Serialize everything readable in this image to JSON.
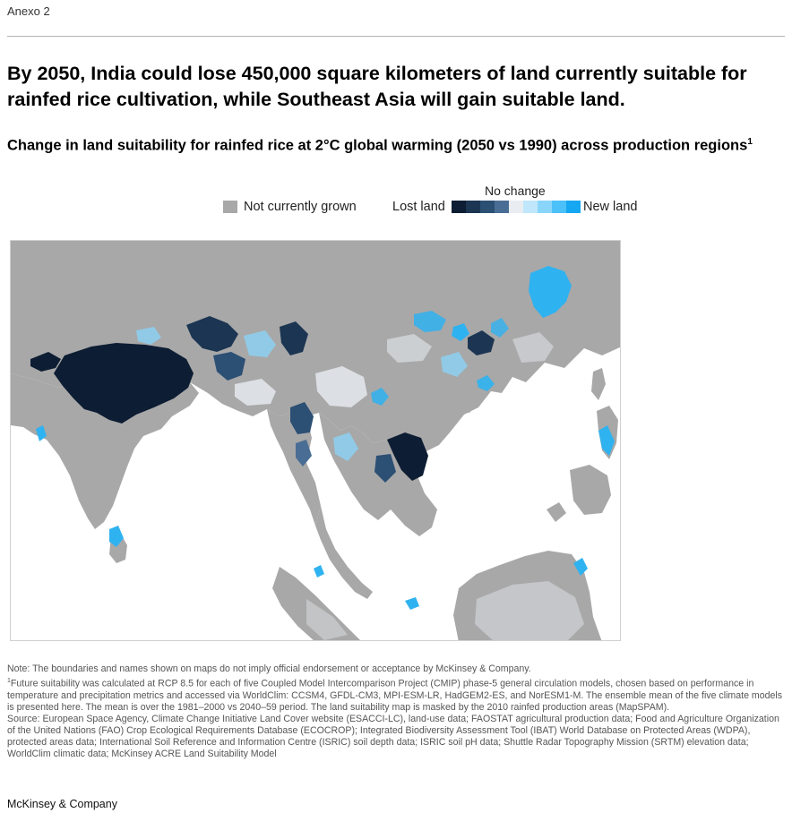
{
  "exhibit_label": "Anexo 2",
  "headline": "By 2050, India could lose 450,000 square kilometers of land currently suitable for rainfed rice cultivation, while Southeast Asia will gain suitable land.",
  "subtitle": "Change in land suitability for rainfed rice at 2°C global warming (2050 vs 1990) across production regions",
  "subtitle_footnote_mark": "1",
  "legend": {
    "not_grown_label": "Not currently grown",
    "not_grown_color": "#a8a8a8",
    "lost_label": "Lost land",
    "no_change_label": "No change",
    "new_label": "New land",
    "ramp_colors": [
      "#0d1d33",
      "#1b3552",
      "#2c4f74",
      "#4a6d95",
      "#e9edf2",
      "#bfe6fb",
      "#8ad6fb",
      "#4cc0f8",
      "#16a7f3"
    ]
  },
  "map": {
    "ocean_color": "#ffffff",
    "land_color": "#a8a8a8",
    "lost_color_strong": "#0d1d33",
    "lost_color_mid": "#3d5f85",
    "new_color": "#2fb2f0",
    "no_change_color": "#e6e9ee"
  },
  "notes": {
    "note": "Note: The boundaries and names shown on maps do not imply official endorsement or acceptance by McKinsey & Company.",
    "footnote_mark": "1",
    "footnote": "Future suitability was calculated at RCP 8.5 for each of five Coupled Model Intercomparison Project (CMIP) phase-5 general circulation models, chosen based on performance in temperature and precipitation metrics and accessed via WorldClim: CCSM4, GFDL-CM3, MPI-ESM-LR, HadGEM2-ES, and NorESM1-M. The ensemble mean of the five climate models is presented here. The mean is over the 1981–2000 vs 2040–59 period. The land suitability map is masked by the 2010 rainfed production areas (MapSPAM).",
    "source": "Source: European Space Agency, Climate Change Initiative Land Cover website (ESACCI-LC), land-use data; FAOSTAT agricultural production data; Food and Agriculture Organization of the United Nations (FAO) Crop Ecological Requirements Database (ECOCROP); Integrated Biodiversity Assessment Tool (IBAT) World Database on Protected Areas (WDPA), protected areas data; International Soil Reference and Information Centre (ISRIC) soil depth data; ISRIC soil pH data; Shuttle Radar Topography Mission (SRTM) elevation data; WorldClim climatic data; McKinsey ACRE Land Suitability Model"
  },
  "brand": "McKinsey & Company"
}
